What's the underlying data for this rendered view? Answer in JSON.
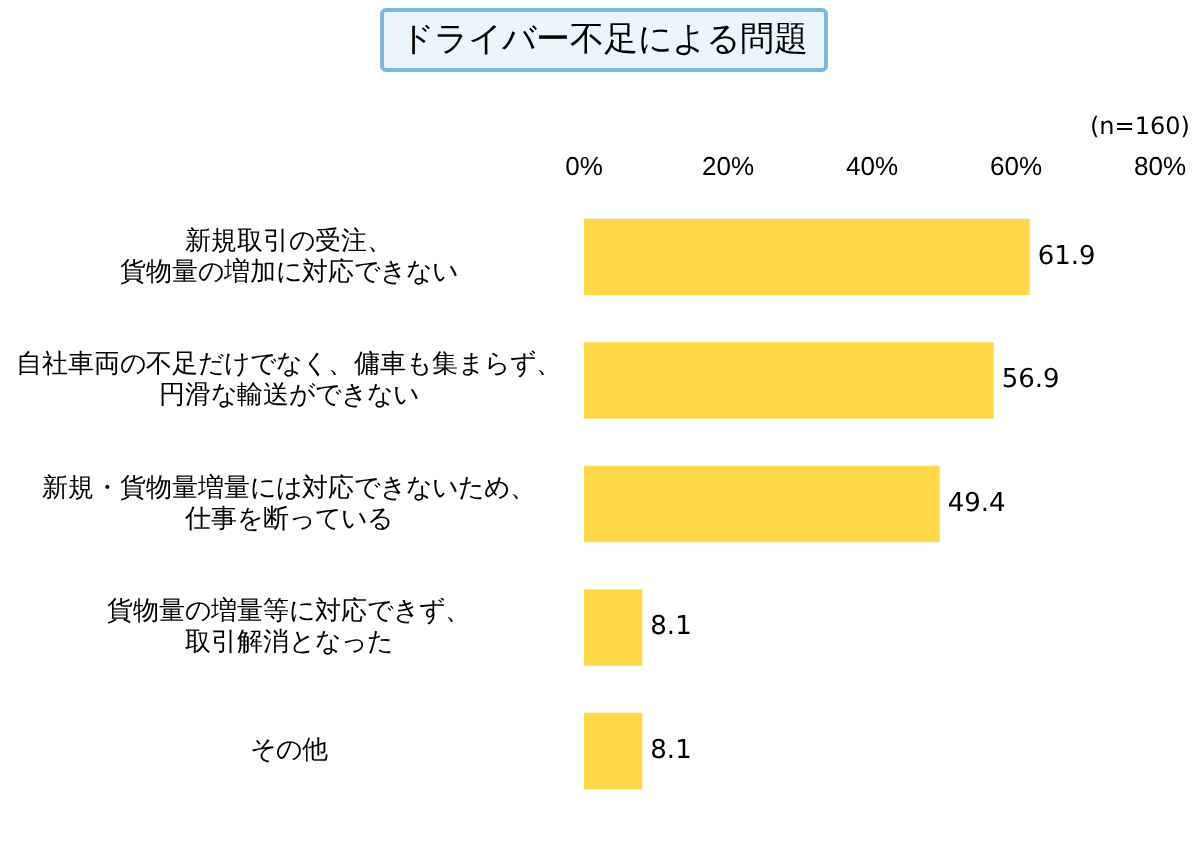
{
  "chart_data": {
    "type": "bar",
    "orientation": "horizontal",
    "title": "ドライバー不足による問題",
    "categories": [
      "新規取引の受注、貨物量の増加に対応できない",
      "自社車両の不足だけでなく、傭車も集まらず、円滑な輸送ができない",
      "新規・貨物量増量には対応できないため、仕事を断っている",
      "貨物量の増量等に対応できず、取引解消となった",
      "その他"
    ],
    "values": [
      61.9,
      56.9,
      49.4,
      8.1,
      8.1
    ],
    "color": "#ffd84a",
    "xlim": [
      0,
      80
    ],
    "xticks": [
      {
        "value": 0,
        "label": "0%"
      },
      {
        "value": 20,
        "label": "20%"
      },
      {
        "value": 40,
        "label": "40%"
      },
      {
        "value": 60,
        "label": "60%"
      },
      {
        "value": 80,
        "label": "80%"
      }
    ],
    "grid": false,
    "data_labels": true,
    "annotations": [
      "(n=160)"
    ]
  }
}
